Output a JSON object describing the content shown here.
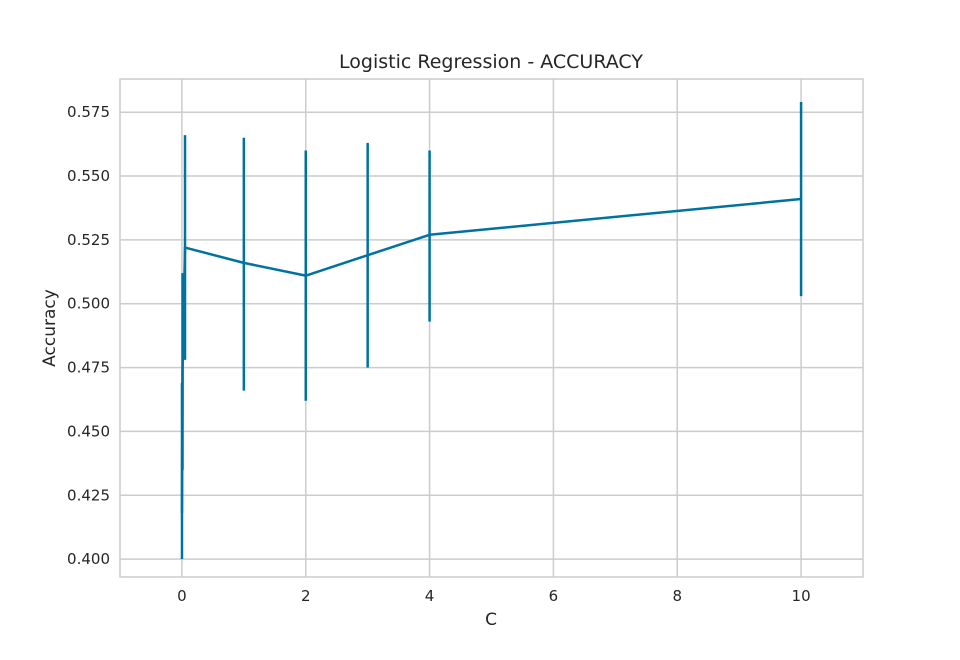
{
  "chart_data": {
    "type": "line",
    "title": "Logistic Regression - ACCURACY",
    "xlabel": "C",
    "ylabel": "Accuracy",
    "xlim": [
      -1,
      11
    ],
    "ylim": [
      0.393,
      0.588
    ],
    "xticks": [
      0,
      2,
      4,
      6,
      8,
      10
    ],
    "yticks": [
      0.4,
      0.425,
      0.45,
      0.475,
      0.5,
      0.525,
      0.55,
      0.575
    ],
    "ytick_labels": [
      "0.400",
      "0.425",
      "0.450",
      "0.475",
      "0.500",
      "0.525",
      "0.550",
      "0.575"
    ],
    "grid": true,
    "series_color": "#0072a2",
    "grid_color": "#cccccc",
    "frame_color": "#cccccc",
    "x": [
      0.001,
      0.01,
      0.05,
      1,
      2,
      3,
      4,
      10
    ],
    "y": [
      0.418,
      0.474,
      0.522,
      0.516,
      0.511,
      0.519,
      0.527,
      0.541
    ],
    "y_low": [
      0.4,
      0.435,
      0.478,
      0.466,
      0.462,
      0.475,
      0.493,
      0.503
    ],
    "y_high": [
      0.469,
      0.512,
      0.566,
      0.565,
      0.56,
      0.563,
      0.56,
      0.579
    ]
  }
}
